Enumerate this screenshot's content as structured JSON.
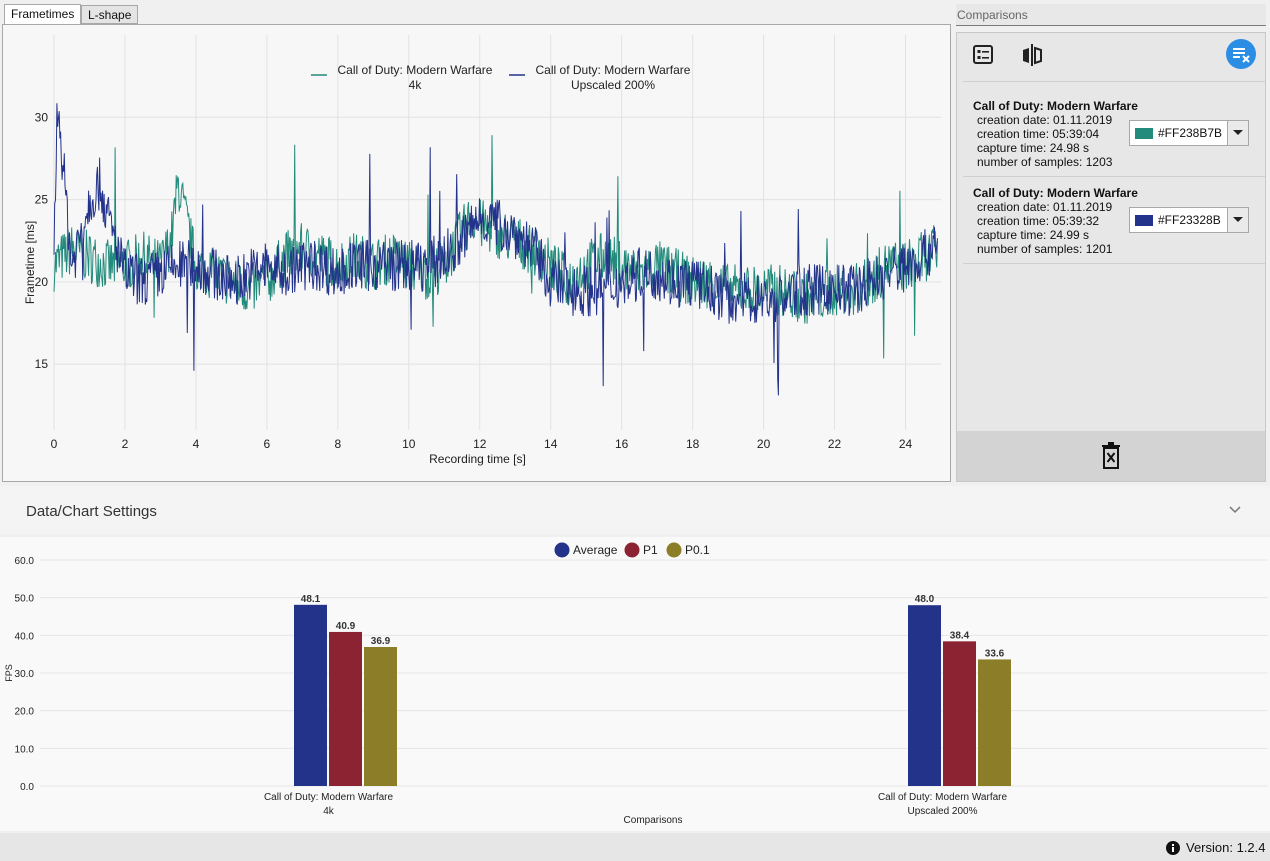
{
  "tabs": [
    {
      "label": "Frametimes"
    },
    {
      "label": "L-shape"
    }
  ],
  "frametimes": {
    "xlabel": "Recording time [s]",
    "ylabel": "Frametime [ms]",
    "x_ticks": [
      "0",
      "2",
      "4",
      "6",
      "8",
      "10",
      "12",
      "14",
      "16",
      "18",
      "20",
      "22",
      "24"
    ],
    "y_ticks": [
      "15",
      "20",
      "25",
      "30"
    ],
    "legend": [
      {
        "line1": "Call of Duty: Modern Warfare",
        "line2": "4k",
        "color": "#238B7B"
      },
      {
        "line1": "Call of Duty: Modern Warfare",
        "line2": "Upscaled 200%",
        "color": "#23328B"
      }
    ]
  },
  "chart_data": [
    {
      "type": "line",
      "title": "",
      "xlabel": "Recording time [s]",
      "ylabel": "Frametime [ms]",
      "xlim": [
        0,
        25
      ],
      "ylim": [
        11,
        35
      ],
      "series": [
        {
          "name": "Call of Duty: Modern Warfare 4k",
          "color": "#238B7B",
          "x": [
            0,
            0.5,
            1,
            1.5,
            2,
            2.5,
            3,
            3.3,
            3.5,
            4,
            4.5,
            5,
            5.5,
            6,
            6.5,
            7,
            7.5,
            8,
            8.5,
            9,
            9.5,
            10,
            10.5,
            11,
            11.5,
            11.8,
            12,
            12.5,
            13,
            13.5,
            14,
            14.5,
            15,
            15.5,
            16,
            16.5,
            17,
            17.5,
            18,
            18.5,
            19,
            19.5,
            20,
            20.5,
            21,
            21.5,
            22,
            22.5,
            23,
            23.5,
            24,
            24.5,
            24.9
          ],
          "y": [
            21,
            22,
            21.5,
            21,
            21,
            21.5,
            21,
            22.5,
            26,
            21,
            20.5,
            20,
            19.5,
            20,
            21.5,
            22,
            21.5,
            21,
            21.5,
            21,
            21.5,
            21,
            20.5,
            21,
            23,
            24,
            23.5,
            23,
            22.5,
            22,
            21,
            20,
            21,
            21.5,
            21,
            20.5,
            21,
            20.5,
            20,
            20,
            19.5,
            19.5,
            19.5,
            19.5,
            19,
            19,
            19.5,
            19.5,
            20,
            21,
            21,
            21.5,
            22
          ]
        },
        {
          "name": "Call of Duty: Modern Warfare Upscaled 200%",
          "color": "#23328B",
          "x": [
            0,
            0.1,
            0.5,
            1,
            1.3,
            1.5,
            2,
            2.5,
            3,
            3.5,
            4,
            4.5,
            5,
            5.5,
            6,
            6.5,
            7,
            7.5,
            8,
            8.5,
            9,
            9.5,
            10,
            10.5,
            11,
            11.5,
            12,
            12.5,
            13,
            13.5,
            14,
            14.5,
            15,
            15.5,
            16,
            16.5,
            17,
            17.5,
            18,
            18.5,
            19,
            19.5,
            20,
            20.5,
            21,
            21.5,
            22,
            22.5,
            23,
            23.5,
            24,
            24.5,
            24.9
          ],
          "y": [
            22,
            31,
            21,
            25,
            26,
            24,
            20.5,
            20,
            20.5,
            21,
            21,
            20.5,
            20,
            20.5,
            21,
            20.5,
            21,
            21,
            20.5,
            21,
            21,
            21,
            21,
            21,
            21.5,
            22.5,
            24,
            23.5,
            23,
            22,
            20,
            19.5,
            19.5,
            19.5,
            20,
            20.5,
            20.5,
            20,
            20,
            19.5,
            19,
            19,
            19,
            19,
            19.5,
            19.5,
            19.5,
            19.5,
            20,
            20.5,
            21,
            21.5,
            22.5
          ]
        }
      ]
    },
    {
      "type": "bar",
      "title": "",
      "xlabel": "Comparisons",
      "ylabel": "FPS",
      "ylim": [
        0,
        60
      ],
      "y_ticks": [
        "0.0",
        "10.0",
        "20.0",
        "30.0",
        "40.0",
        "50.0",
        "60.0"
      ],
      "categories": [
        {
          "line1": "Call of Duty: Modern Warfare",
          "line2": "4k"
        },
        {
          "line1": "Call of Duty: Modern Warfare",
          "line2": "Upscaled 200%"
        }
      ],
      "series": [
        {
          "name": "Average",
          "color": "#24338A",
          "values": [
            48.1,
            48.0
          ],
          "labels": [
            "48.1",
            "48.0"
          ]
        },
        {
          "name": "P1",
          "color": "#8C2332",
          "values": [
            40.9,
            38.4
          ],
          "labels": [
            "40.9",
            "38.4"
          ]
        },
        {
          "name": "P0.1",
          "color": "#8C7D29",
          "values": [
            36.9,
            33.6
          ],
          "labels": [
            "36.9",
            "33.6"
          ]
        }
      ]
    }
  ],
  "comparisons": {
    "header": "Comparisons",
    "items": [
      {
        "title": "Call of Duty: Modern Warfare",
        "creation_date": "creation date: 01.11.2019",
        "creation_time": "creation time: 05:39:04",
        "capture_time": "capture time: 24.98 s",
        "samples": "number of samples: 1203",
        "color_label": "#FF238B7B",
        "color": "#238B7B"
      },
      {
        "title": "Call of Duty: Modern Warfare",
        "creation_date": "creation date: 01.11.2019",
        "creation_time": "creation time: 05:39:32",
        "capture_time": "capture time: 24.99 s",
        "samples": "number of samples: 1201",
        "color_label": "#FF23328B",
        "color": "#23328B"
      }
    ]
  },
  "settings": {
    "title": "Data/Chart Settings"
  },
  "footer": {
    "version": "Version: 1.2.4"
  }
}
